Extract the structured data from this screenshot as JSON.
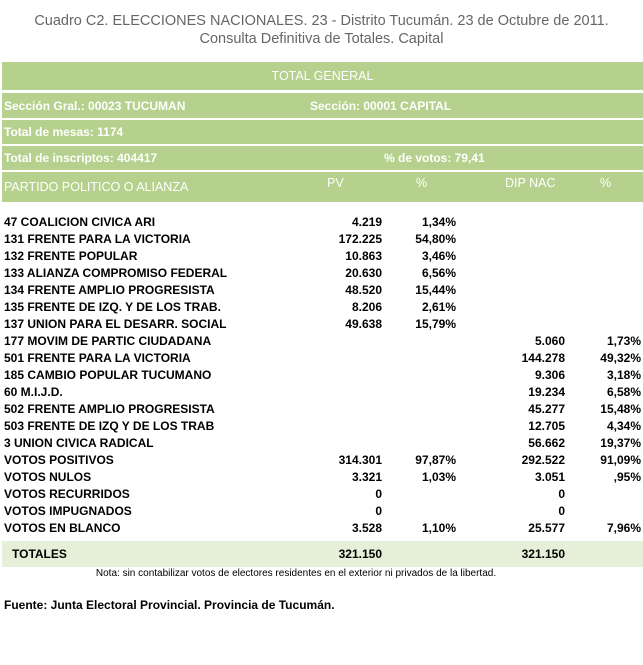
{
  "title": {
    "line1": "Cuadro C2. ELECCIONES NACIONALES. 23 - Distrito Tucumán. 23 de Octubre de 2011.",
    "line2": "Consulta Definitiva de Totales. Capital"
  },
  "header": {
    "total_general": "TOTAL GENERAL",
    "seccion_gral": "Sección Gral.:  00023  TUCUMAN",
    "seccion": "Sección:  00001  CAPITAL",
    "total_mesas": "Total de mesas: 1174",
    "total_inscriptos": "Total de inscriptos: 404417",
    "pct_votos": "% de votos: 79,41",
    "col_partido": "PARTIDO POLITICO O ALIANZA",
    "col_pv": "PV",
    "col_pct": "%",
    "col_dip": "DIP NAC",
    "col_pct2": "%"
  },
  "rows": [
    {
      "name": "47 COALICION CIVICA ARI",
      "pv": "4.219",
      "pct": "1,34%",
      "dip": "",
      "pct2": ""
    },
    {
      "name": "131 FRENTE PARA LA VICTORIA",
      "pv": "172.225",
      "pct": "54,80%",
      "dip": "",
      "pct2": ""
    },
    {
      "name": "132 FRENTE POPULAR",
      "pv": "10.863",
      "pct": "3,46%",
      "dip": "",
      "pct2": ""
    },
    {
      "name": "133 ALIANZA COMPROMISO FEDERAL",
      "pv": "20.630",
      "pct": "6,56%",
      "dip": "",
      "pct2": ""
    },
    {
      "name": "134 FRENTE AMPLIO PROGRESISTA",
      "pv": "48.520",
      "pct": "15,44%",
      "dip": "",
      "pct2": ""
    },
    {
      "name": "135 FRENTE DE IZQ. Y DE LOS TRAB.",
      "pv": "8.206",
      "pct": "2,61%",
      "dip": "",
      "pct2": ""
    },
    {
      "name": "137 UNION PARA EL DESARR. SOCIAL",
      "pv": "49.638",
      "pct": "15,79%",
      "dip": "",
      "pct2": ""
    },
    {
      "name": "177 MOVIM DE PARTIC CIUDADANA",
      "pv": "",
      "pct": "",
      "dip": "5.060",
      "pct2": "1,73%"
    },
    {
      "name": "501 FRENTE PARA LA VICTORIA",
      "pv": "",
      "pct": "",
      "dip": "144.278",
      "pct2": "49,32%"
    },
    {
      "name": "185 CAMBIO POPULAR TUCUMANO",
      "pv": "",
      "pct": "",
      "dip": "9.306",
      "pct2": "3,18%"
    },
    {
      "name": "60 M.I.J.D.",
      "pv": "",
      "pct": "",
      "dip": "19.234",
      "pct2": "6,58%"
    },
    {
      "name": "502 FRENTE AMPLIO PROGRESISTA",
      "pv": "",
      "pct": "",
      "dip": "45.277",
      "pct2": "15,48%"
    },
    {
      "name": "503 FRENTE DE IZQ Y DE LOS TRAB",
      "pv": "",
      "pct": "",
      "dip": "12.705",
      "pct2": "4,34%"
    },
    {
      "name": "3 UNION CIVICA RADICAL",
      "pv": "",
      "pct": "",
      "dip": "56.662",
      "pct2": "19,37%"
    },
    {
      "name": "VOTOS POSITIVOS",
      "pv": "314.301",
      "pct": "97,87%",
      "dip": "292.522",
      "pct2": "91,09%"
    },
    {
      "name": "VOTOS NULOS",
      "pv": "3.321",
      "pct": "1,03%",
      "dip": "3.051",
      "pct2": ",95%"
    },
    {
      "name": "VOTOS RECURRIDOS",
      "pv": "0",
      "pct": "",
      "dip": "0",
      "pct2": ""
    },
    {
      "name": "VOTOS IMPUGNADOS",
      "pv": "0",
      "pct": "",
      "dip": "0",
      "pct2": ""
    },
    {
      "name": "VOTOS EN BLANCO",
      "pv": "3.528",
      "pct": "1,10%",
      "dip": "25.577",
      "pct2": "7,96%"
    }
  ],
  "totals": {
    "label": "TOTALES",
    "pv": "321.150",
    "dip": "321.150"
  },
  "note": "Nota: sin contabilizar votos de electores residentes en el exterior ni privados de la libertad.",
  "source": "Fuente: Junta Electoral Provincial. Provincia de Tucumán."
}
